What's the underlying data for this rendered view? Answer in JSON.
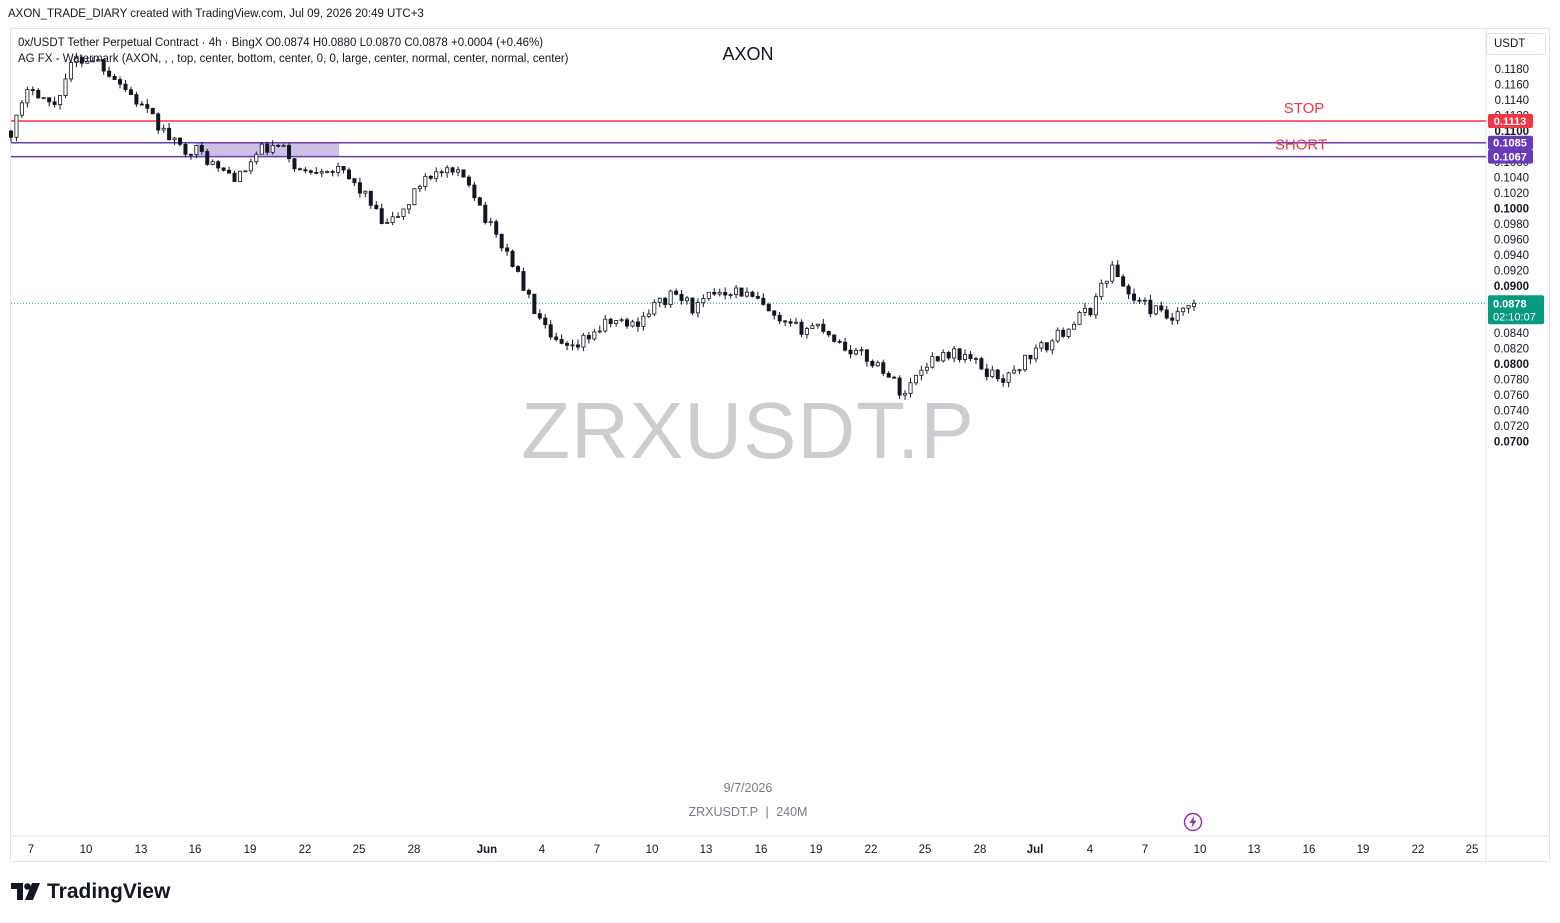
{
  "header": {
    "credit": "AXON_TRADE_DIARY created with TradingView.com, Jul 09, 2026 20:49 UTC+3"
  },
  "legend": {
    "line1": "0x/USDT Tether Perpetual Contract · 4h · BingX  O0.0874  H0.0880  L0.0870  C0.0878  +0.0004 (+0.46%)",
    "line2": "AG FX - Watermark (AXON, , , top, center, bottom, center, 0, 0, large, center, normal, center, normal, center)"
  },
  "watermark": {
    "title": "AXON",
    "symbol_big": "ZRXUSDT.P",
    "date": "9/7/2026",
    "symbol_small": "ZRXUSDT.P",
    "separator": "|",
    "interval": "240M"
  },
  "currency_button": "USDT",
  "brand": "TradingView",
  "colors": {
    "up": "#131722",
    "down": "#131722",
    "stop": "#f23645",
    "zone": "#673ab7",
    "zone_fill": "rgba(126,87,194,0.38)",
    "last_price": "#089981",
    "grid_text": "#131722"
  },
  "chart_data": {
    "type": "candlestick",
    "symbol": "ZRXUSDT.P",
    "interval": "4h",
    "exchange": "BingX",
    "ohlc_last": {
      "open": 0.0874,
      "high": 0.088,
      "low": 0.087,
      "close": 0.0878,
      "change": "+0.0004 (+0.46%)"
    },
    "y_axis": {
      "range": [
        0.069,
        0.1205
      ],
      "ticks": [
        "0.1180",
        "0.1160",
        "0.1140",
        "0.1120",
        "0.1100",
        "0.1080",
        "0.1060",
        "0.1040",
        "0.1020",
        "0.1000",
        "0.0980",
        "0.0960",
        "0.0940",
        "0.0920",
        "0.0900",
        "0.0880",
        "0.0860",
        "0.0840",
        "0.0820",
        "0.0800",
        "0.0780",
        "0.0760",
        "0.0740",
        "0.0720",
        "0.0700"
      ]
    },
    "x_axis": {
      "ticks": [
        "7",
        "10",
        "13",
        "16",
        "19",
        "22",
        "25",
        "28",
        "Jun",
        "4",
        "7",
        "10",
        "13",
        "16",
        "19",
        "22",
        "25",
        "28",
        "Jul",
        "4",
        "7",
        "10",
        "13",
        "16",
        "19",
        "22",
        "25"
      ]
    },
    "levels": [
      {
        "label": "STOP",
        "price": 0.1113,
        "price_label": "0.1113",
        "color": "#f23645"
      },
      {
        "label": "SHORT",
        "zone_top": 0.1085,
        "zone_bottom": 0.1067,
        "top_label": "0.1085",
        "bottom_label": "0.1067",
        "color": "#673ab7"
      }
    ],
    "last_price": {
      "price": 0.0878,
      "label": "0.0878",
      "countdown": "02:10:07"
    },
    "price_path": [
      {
        "date": "May 6",
        "close": 0.11
      },
      {
        "date": "May 8",
        "close": 0.116
      },
      {
        "date": "May 9",
        "close": 0.113
      },
      {
        "date": "May 10",
        "close": 0.119
      },
      {
        "date": "May 12",
        "close": 0.1195
      },
      {
        "date": "May 13",
        "close": 0.117
      },
      {
        "date": "May 14",
        "close": 0.114
      },
      {
        "date": "May 15",
        "close": 0.111
      },
      {
        "date": "May 16",
        "close": 0.108
      },
      {
        "date": "May 18",
        "close": 0.1075
      },
      {
        "date": "May 19",
        "close": 0.105
      },
      {
        "date": "May 20",
        "close": 0.104
      },
      {
        "date": "May 22",
        "close": 0.1075
      },
      {
        "date": "May 23",
        "close": 0.108
      },
      {
        "date": "May 24",
        "close": 0.1045
      },
      {
        "date": "May 25",
        "close": 0.1055
      },
      {
        "date": "May 26",
        "close": 0.1045
      },
      {
        "date": "May 28",
        "close": 0.102
      },
      {
        "date": "May 29",
        "close": 0.0975
      },
      {
        "date": "May 30",
        "close": 0.1
      },
      {
        "date": "May 31",
        "close": 0.1045
      },
      {
        "date": "Jun 1",
        "close": 0.1045
      },
      {
        "date": "Jun 2",
        "close": 0.104
      },
      {
        "date": "Jun 3",
        "close": 0.098
      },
      {
        "date": "Jun 4",
        "close": 0.094
      },
      {
        "date": "Jun 5",
        "close": 0.088
      },
      {
        "date": "Jun 6",
        "close": 0.083
      },
      {
        "date": "Jun 7",
        "close": 0.0815
      },
      {
        "date": "Jun 8",
        "close": 0.084
      },
      {
        "date": "Jun 10",
        "close": 0.0855
      },
      {
        "date": "Jun 11",
        "close": 0.085
      },
      {
        "date": "Jun 12",
        "close": 0.0875
      },
      {
        "date": "Jun 13",
        "close": 0.089
      },
      {
        "date": "Jun 14",
        "close": 0.087
      },
      {
        "date": "Jun 15",
        "close": 0.0895
      },
      {
        "date": "Jun 16",
        "close": 0.0895
      },
      {
        "date": "Jun 17",
        "close": 0.088
      },
      {
        "date": "Jun 18",
        "close": 0.085
      },
      {
        "date": "Jun 20",
        "close": 0.0845
      },
      {
        "date": "Jun 21",
        "close": 0.085
      },
      {
        "date": "Jun 22",
        "close": 0.0825
      },
      {
        "date": "Jun 23",
        "close": 0.081
      },
      {
        "date": "Jun 24",
        "close": 0.0795
      },
      {
        "date": "Jun 25",
        "close": 0.076
      },
      {
        "date": "Jun 26",
        "close": 0.08
      },
      {
        "date": "Jun 27",
        "close": 0.0815
      },
      {
        "date": "Jun 28",
        "close": 0.081
      },
      {
        "date": "Jun 29",
        "close": 0.079
      },
      {
        "date": "Jun 30",
        "close": 0.078
      },
      {
        "date": "Jul 1",
        "close": 0.081
      },
      {
        "date": "Jul 2",
        "close": 0.0825
      },
      {
        "date": "Jul 3",
        "close": 0.085
      },
      {
        "date": "Jul 4",
        "close": 0.087
      },
      {
        "date": "Jul 5",
        "close": 0.0925
      },
      {
        "date": "Jul 6",
        "close": 0.0885
      },
      {
        "date": "Jul 7",
        "close": 0.087
      },
      {
        "date": "Jul 8",
        "close": 0.0855
      },
      {
        "date": "Jul 9",
        "close": 0.0878
      }
    ]
  }
}
